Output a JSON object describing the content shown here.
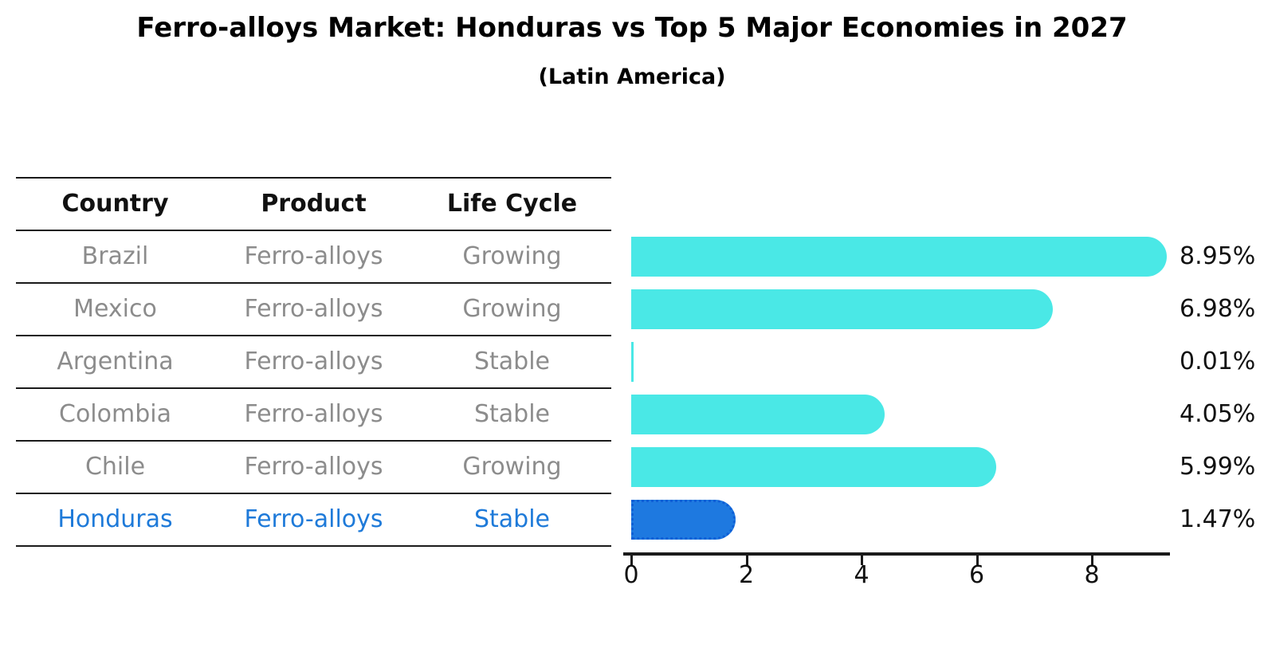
{
  "header": {
    "title": "Ferro-alloys Market: Honduras vs Top 5 Major Economies in 2027",
    "subtitle": "(Latin America)"
  },
  "table": {
    "headers": [
      "Country",
      "Product",
      "Life Cycle"
    ],
    "rows": [
      {
        "country": "Brazil",
        "product": "Ferro-alloys",
        "life_cycle": "Growing",
        "highlight": false
      },
      {
        "country": "Mexico",
        "product": "Ferro-alloys",
        "life_cycle": "Growing",
        "highlight": false
      },
      {
        "country": "Argentina",
        "product": "Ferro-alloys",
        "life_cycle": "Stable",
        "highlight": false
      },
      {
        "country": "Colombia",
        "product": "Ferro-alloys",
        "life_cycle": "Stable",
        "highlight": false
      },
      {
        "country": "Chile",
        "product": "Ferro-alloys",
        "life_cycle": "Growing",
        "highlight": false
      },
      {
        "country": "Honduras",
        "product": "Ferro-alloys",
        "life_cycle": "Stable",
        "highlight": true
      }
    ]
  },
  "chart_data": {
    "type": "bar",
    "orientation": "horizontal",
    "title": "Ferro-alloys Market: Honduras vs Top 5 Major Economies in 2027",
    "subtitle": "(Latin America)",
    "categories": [
      "Brazil",
      "Mexico",
      "Argentina",
      "Colombia",
      "Chile",
      "Honduras"
    ],
    "values": [
      8.95,
      6.98,
      0.01,
      4.05,
      5.99,
      1.47
    ],
    "value_labels": [
      "8.95%",
      "6.98%",
      "0.01%",
      "4.05%",
      "5.99%",
      "1.47%"
    ],
    "highlight_index": 5,
    "highlight_category": "Honduras",
    "xlabel": "",
    "ylabel": "",
    "xticks": [
      0,
      2,
      4,
      6,
      8
    ],
    "xlim": [
      0,
      9.4
    ],
    "grid": false,
    "legend": "none",
    "bar_color": "#4AE8E6",
    "highlight_bar_color": "#1E79E0",
    "highlight_border_color": "#0E5FD6",
    "highlight_text_color": "#1E7AD9",
    "text_color": "#111111",
    "row_text_color": "#8c8c8c"
  }
}
